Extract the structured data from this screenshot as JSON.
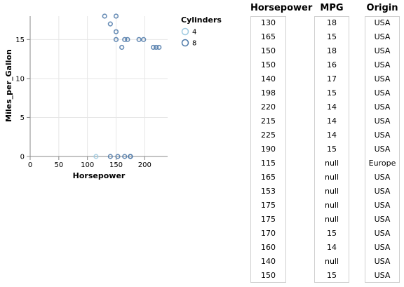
{
  "chart_data": {
    "type": "scatter",
    "xlabel": "Horsepower",
    "ylabel": "Miles_per_Gallon",
    "xlim": [
      0,
      240
    ],
    "ylim": [
      0,
      18
    ],
    "x_ticks": [
      0,
      50,
      100,
      150,
      200
    ],
    "y_ticks": [
      0,
      5,
      10,
      15
    ],
    "grid": true,
    "legend": {
      "title": "Cylinders",
      "placement": "top-right",
      "entries": [
        {
          "label": "4",
          "color": "#9ecae1"
        },
        {
          "label": "8",
          "color": "#4c78a8"
        }
      ]
    },
    "points": [
      {
        "x": 130,
        "y": 18,
        "cyl": "8"
      },
      {
        "x": 165,
        "y": 15,
        "cyl": "8"
      },
      {
        "x": 150,
        "y": 18,
        "cyl": "8"
      },
      {
        "x": 150,
        "y": 16,
        "cyl": "8"
      },
      {
        "x": 140,
        "y": 17,
        "cyl": "8"
      },
      {
        "x": 198,
        "y": 15,
        "cyl": "8"
      },
      {
        "x": 220,
        "y": 14,
        "cyl": "8"
      },
      {
        "x": 215,
        "y": 14,
        "cyl": "8"
      },
      {
        "x": 225,
        "y": 14,
        "cyl": "8"
      },
      {
        "x": 190,
        "y": 15,
        "cyl": "8"
      },
      {
        "x": 115,
        "y": 0,
        "cyl": "4"
      },
      {
        "x": 165,
        "y": 0,
        "cyl": "8"
      },
      {
        "x": 153,
        "y": 0,
        "cyl": "8"
      },
      {
        "x": 175,
        "y": 0,
        "cyl": "8"
      },
      {
        "x": 175,
        "y": 0,
        "cyl": "8"
      },
      {
        "x": 170,
        "y": 15,
        "cyl": "8"
      },
      {
        "x": 160,
        "y": 14,
        "cyl": "8"
      },
      {
        "x": 140,
        "y": 0,
        "cyl": "8"
      },
      {
        "x": 150,
        "y": 15,
        "cyl": "8"
      }
    ]
  },
  "table": {
    "columns": [
      {
        "header": "Horsepower",
        "values": [
          "130",
          "165",
          "150",
          "150",
          "140",
          "198",
          "220",
          "215",
          "225",
          "190",
          "115",
          "165",
          "153",
          "175",
          "175",
          "170",
          "160",
          "140",
          "150"
        ]
      },
      {
        "header": "MPG",
        "values": [
          "18",
          "15",
          "18",
          "16",
          "17",
          "15",
          "14",
          "14",
          "14",
          "15",
          "null",
          "null",
          "null",
          "null",
          "null",
          "15",
          "14",
          "null",
          "15"
        ]
      },
      {
        "header": "Origin",
        "values": [
          "USA",
          "USA",
          "USA",
          "USA",
          "USA",
          "USA",
          "USA",
          "USA",
          "USA",
          "USA",
          "Europe",
          "USA",
          "USA",
          "USA",
          "USA",
          "USA",
          "USA",
          "USA",
          "USA"
        ]
      }
    ]
  }
}
